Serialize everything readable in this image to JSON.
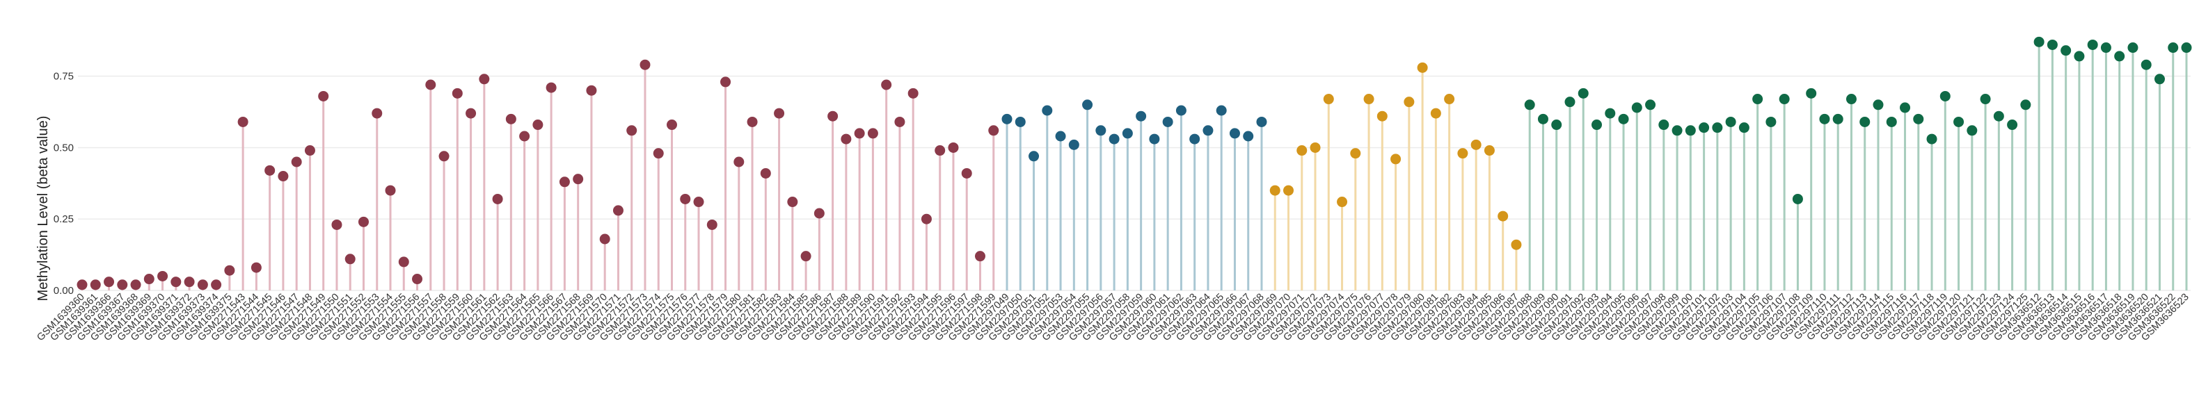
{
  "chart_data": {
    "type": "lollipop",
    "title": "",
    "xlabel": "",
    "ylabel": "Methylation Level (beta value)",
    "ylim": [
      0,
      0.9
    ],
    "yticks": [
      "0.00",
      "0.25",
      "0.50",
      "0.75"
    ],
    "ytick_values": [
      0,
      0.25,
      0.5,
      0.75
    ],
    "grid": true,
    "legend": "none",
    "groups": [
      {
        "color": "#8b3a4a",
        "stem_color": "#e3b8c1",
        "points": [
          {
            "label": "GSM1639360",
            "value": 0.02
          },
          {
            "label": "GSM1639361",
            "value": 0.02
          },
          {
            "label": "GSM1639366",
            "value": 0.03
          },
          {
            "label": "GSM1639367",
            "value": 0.02
          },
          {
            "label": "GSM1639368",
            "value": 0.02
          },
          {
            "label": "GSM1639369",
            "value": 0.04
          },
          {
            "label": "GSM1639370",
            "value": 0.05
          },
          {
            "label": "GSM1639371",
            "value": 0.03
          },
          {
            "label": "GSM1639372",
            "value": 0.03
          },
          {
            "label": "GSM1639373",
            "value": 0.02
          },
          {
            "label": "GSM1639374",
            "value": 0.02
          },
          {
            "label": "GSM1639375",
            "value": 0.07
          },
          {
            "label": "GSM2271543",
            "value": 0.59
          },
          {
            "label": "GSM2271544",
            "value": 0.08
          },
          {
            "label": "GSM2271545",
            "value": 0.42
          },
          {
            "label": "GSM2271546",
            "value": 0.4
          },
          {
            "label": "GSM2271547",
            "value": 0.45
          },
          {
            "label": "GSM2271548",
            "value": 0.49
          },
          {
            "label": "GSM2271549",
            "value": 0.68
          },
          {
            "label": "GSM2271550",
            "value": 0.23
          },
          {
            "label": "GSM2271551",
            "value": 0.11
          },
          {
            "label": "GSM2271552",
            "value": 0.24
          },
          {
            "label": "GSM2271553",
            "value": 0.62
          },
          {
            "label": "GSM2271554",
            "value": 0.35
          },
          {
            "label": "GSM2271555",
            "value": 0.1
          },
          {
            "label": "GSM2271556",
            "value": 0.04
          },
          {
            "label": "GSM2271557",
            "value": 0.72
          },
          {
            "label": "GSM2271558",
            "value": 0.47
          },
          {
            "label": "GSM2271559",
            "value": 0.69
          },
          {
            "label": "GSM2271560",
            "value": 0.62
          },
          {
            "label": "GSM2271561",
            "value": 0.74
          },
          {
            "label": "GSM2271562",
            "value": 0.32
          },
          {
            "label": "GSM2271563",
            "value": 0.6
          },
          {
            "label": "GSM2271564",
            "value": 0.54
          },
          {
            "label": "GSM2271565",
            "value": 0.58
          },
          {
            "label": "GSM2271566",
            "value": 0.71
          },
          {
            "label": "GSM2271567",
            "value": 0.38
          },
          {
            "label": "GSM2271568",
            "value": 0.39
          },
          {
            "label": "GSM2271569",
            "value": 0.7
          },
          {
            "label": "GSM2271570",
            "value": 0.18
          },
          {
            "label": "GSM2271571",
            "value": 0.28
          },
          {
            "label": "GSM2271572",
            "value": 0.56
          },
          {
            "label": "GSM2271573",
            "value": 0.79
          },
          {
            "label": "GSM2271574",
            "value": 0.48
          },
          {
            "label": "GSM2271575",
            "value": 0.58
          },
          {
            "label": "GSM2271576",
            "value": 0.32
          },
          {
            "label": "GSM2271577",
            "value": 0.31
          },
          {
            "label": "GSM2271578",
            "value": 0.23
          },
          {
            "label": "GSM2271579",
            "value": 0.73
          },
          {
            "label": "GSM2271580",
            "value": 0.45
          },
          {
            "label": "GSM2271581",
            "value": 0.59
          },
          {
            "label": "GSM2271582",
            "value": 0.41
          },
          {
            "label": "GSM2271583",
            "value": 0.62
          },
          {
            "label": "GSM2271584",
            "value": 0.31
          },
          {
            "label": "GSM2271585",
            "value": 0.12
          },
          {
            "label": "GSM2271586",
            "value": 0.27
          },
          {
            "label": "GSM2271587",
            "value": 0.61
          },
          {
            "label": "GSM2271588",
            "value": 0.53
          },
          {
            "label": "GSM2271589",
            "value": 0.55
          },
          {
            "label": "GSM2271590",
            "value": 0.55
          },
          {
            "label": "GSM2271591",
            "value": 0.72
          },
          {
            "label": "GSM2271592",
            "value": 0.59
          },
          {
            "label": "GSM2271593",
            "value": 0.69
          },
          {
            "label": "GSM2271594",
            "value": 0.25
          },
          {
            "label": "GSM2271595",
            "value": 0.49
          },
          {
            "label": "GSM2271596",
            "value": 0.5
          },
          {
            "label": "GSM2271597",
            "value": 0.41
          },
          {
            "label": "GSM2271598",
            "value": 0.12
          },
          {
            "label": "GSM2271599",
            "value": 0.56
          }
        ]
      },
      {
        "color": "#1f5f7f",
        "stem_color": "#a9c7d3",
        "points": [
          {
            "label": "GSM2297049",
            "value": 0.6
          },
          {
            "label": "GSM2297050",
            "value": 0.59
          },
          {
            "label": "GSM2297051",
            "value": 0.47
          },
          {
            "label": "GSM2297052",
            "value": 0.63
          },
          {
            "label": "GSM2297053",
            "value": 0.54
          },
          {
            "label": "GSM2297054",
            "value": 0.51
          },
          {
            "label": "GSM2297055",
            "value": 0.65
          },
          {
            "label": "GSM2297056",
            "value": 0.56
          },
          {
            "label": "GSM2297057",
            "value": 0.53
          },
          {
            "label": "GSM2297058",
            "value": 0.55
          },
          {
            "label": "GSM2297059",
            "value": 0.61
          },
          {
            "label": "GSM2297060",
            "value": 0.53
          },
          {
            "label": "GSM2297061",
            "value": 0.59
          },
          {
            "label": "GSM2297062",
            "value": 0.63
          },
          {
            "label": "GSM2297063",
            "value": 0.53
          },
          {
            "label": "GSM2297064",
            "value": 0.56
          },
          {
            "label": "GSM2297065",
            "value": 0.63
          },
          {
            "label": "GSM2297066",
            "value": 0.55
          },
          {
            "label": "GSM2297067",
            "value": 0.54
          },
          {
            "label": "GSM2297068",
            "value": 0.59
          }
        ]
      },
      {
        "color": "#d4951a",
        "stem_color": "#f2d9a6",
        "points": [
          {
            "label": "GSM2297069",
            "value": 0.35
          },
          {
            "label": "GSM2297070",
            "value": 0.35
          },
          {
            "label": "GSM2297071",
            "value": 0.49
          },
          {
            "label": "GSM2297072",
            "value": 0.5
          },
          {
            "label": "GSM2297073",
            "value": 0.67
          },
          {
            "label": "GSM2297074",
            "value": 0.31
          },
          {
            "label": "GSM2297075",
            "value": 0.48
          },
          {
            "label": "GSM2297076",
            "value": 0.67
          },
          {
            "label": "GSM2297077",
            "value": 0.61
          },
          {
            "label": "GSM2297078",
            "value": 0.46
          },
          {
            "label": "GSM2297079",
            "value": 0.66
          },
          {
            "label": "GSM2297080",
            "value": 0.78
          },
          {
            "label": "GSM2297081",
            "value": 0.62
          },
          {
            "label": "GSM2297082",
            "value": 0.67
          },
          {
            "label": "GSM2297083",
            "value": 0.48
          },
          {
            "label": "GSM2297084",
            "value": 0.51
          },
          {
            "label": "GSM2297085",
            "value": 0.49
          },
          {
            "label": "GSM2297086",
            "value": 0.26
          },
          {
            "label": "GSM2297087",
            "value": 0.16
          }
        ]
      },
      {
        "color": "#0f6a46",
        "stem_color": "#a8cdbd",
        "points": [
          {
            "label": "GSM2297088",
            "value": 0.65
          },
          {
            "label": "GSM2297089",
            "value": 0.6
          },
          {
            "label": "GSM2297090",
            "value": 0.58
          },
          {
            "label": "GSM2297091",
            "value": 0.66
          },
          {
            "label": "GSM2297092",
            "value": 0.69
          },
          {
            "label": "GSM2297093",
            "value": 0.58
          },
          {
            "label": "GSM2297094",
            "value": 0.62
          },
          {
            "label": "GSM2297095",
            "value": 0.6
          },
          {
            "label": "GSM2297096",
            "value": 0.64
          },
          {
            "label": "GSM2297097",
            "value": 0.65
          },
          {
            "label": "GSM2297098",
            "value": 0.58
          },
          {
            "label": "GSM2297099",
            "value": 0.56
          },
          {
            "label": "GSM2297100",
            "value": 0.56
          },
          {
            "label": "GSM2297101",
            "value": 0.57
          },
          {
            "label": "GSM2297102",
            "value": 0.57
          },
          {
            "label": "GSM2297103",
            "value": 0.59
          },
          {
            "label": "GSM2297104",
            "value": 0.57
          },
          {
            "label": "GSM2297105",
            "value": 0.67
          },
          {
            "label": "GSM2297106",
            "value": 0.59
          },
          {
            "label": "GSM2297107",
            "value": 0.67
          },
          {
            "label": "GSM2297108",
            "value": 0.32
          },
          {
            "label": "GSM2297109",
            "value": 0.69
          },
          {
            "label": "GSM2297110",
            "value": 0.6
          },
          {
            "label": "GSM2297111",
            "value": 0.6
          },
          {
            "label": "GSM2297112",
            "value": 0.67
          },
          {
            "label": "GSM2297113",
            "value": 0.59
          },
          {
            "label": "GSM2297114",
            "value": 0.65
          },
          {
            "label": "GSM2297115",
            "value": 0.59
          },
          {
            "label": "GSM2297116",
            "value": 0.64
          },
          {
            "label": "GSM2297117",
            "value": 0.6
          },
          {
            "label": "GSM2297118",
            "value": 0.53
          },
          {
            "label": "GSM2297119",
            "value": 0.68
          },
          {
            "label": "GSM2297120",
            "value": 0.59
          },
          {
            "label": "GSM2297121",
            "value": 0.56
          },
          {
            "label": "GSM2297122",
            "value": 0.67
          },
          {
            "label": "GSM2297123",
            "value": 0.61
          },
          {
            "label": "GSM2297124",
            "value": 0.58
          },
          {
            "label": "GSM2297125",
            "value": 0.65
          },
          {
            "label": "GSM3636512",
            "value": 0.87
          },
          {
            "label": "GSM3636513",
            "value": 0.86
          },
          {
            "label": "GSM3636514",
            "value": 0.84
          },
          {
            "label": "GSM3636515",
            "value": 0.82
          },
          {
            "label": "GSM3636516",
            "value": 0.86
          },
          {
            "label": "GSM3636517",
            "value": 0.85
          },
          {
            "label": "GSM3636518",
            "value": 0.82
          },
          {
            "label": "GSM3636519",
            "value": 0.85
          },
          {
            "label": "GSM3636520",
            "value": 0.79
          },
          {
            "label": "GSM3636521",
            "value": 0.74
          },
          {
            "label": "GSM3636522",
            "value": 0.85
          },
          {
            "label": "GSM3636523",
            "value": 0.85
          }
        ]
      }
    ]
  }
}
